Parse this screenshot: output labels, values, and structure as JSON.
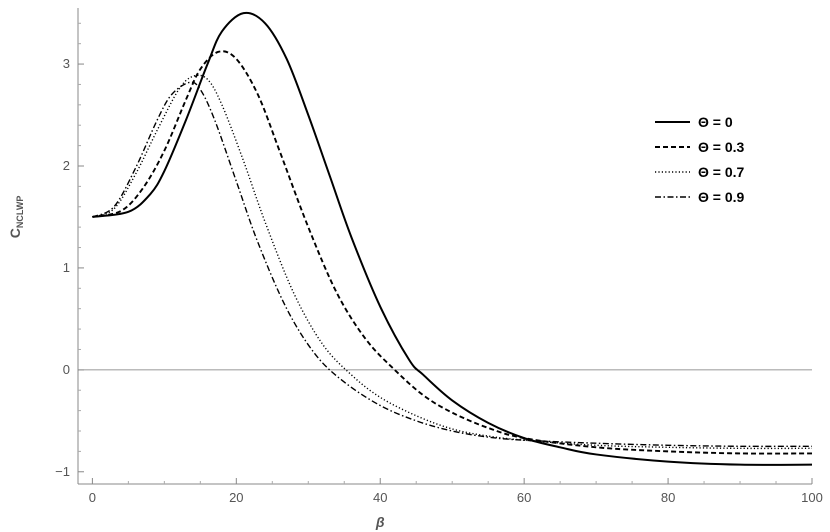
{
  "chart_data": {
    "type": "line",
    "title": "",
    "xlabel": "β",
    "ylabel": "C",
    "ylabel_sub": "NCLWP",
    "xlim": [
      -2,
      100
    ],
    "ylim": [
      -1.12,
      3.55
    ],
    "x_ticks": [
      0,
      20,
      40,
      60,
      80,
      100
    ],
    "x_tick_labels": [
      "0",
      "20",
      "40",
      "60",
      "80",
      "100"
    ],
    "y_ticks": [
      -1,
      0,
      1,
      2,
      3
    ],
    "y_tick_labels": [
      "−1",
      "0",
      "1",
      "2",
      "3"
    ],
    "grid": false,
    "legend_position": "top-right",
    "series": [
      {
        "name": "Θ = 0",
        "style": "solid",
        "x": [
          0,
          5,
          8,
          10,
          13,
          16,
          18,
          21,
          24,
          27,
          30,
          33,
          36,
          40,
          44,
          46,
          50,
          55,
          60,
          65,
          70,
          80,
          90,
          100
        ],
        "y": [
          1.5,
          1.55,
          1.72,
          1.95,
          2.45,
          3.0,
          3.32,
          3.5,
          3.4,
          3.05,
          2.5,
          1.9,
          1.3,
          0.62,
          0.1,
          -0.05,
          -0.3,
          -0.52,
          -0.67,
          -0.76,
          -0.83,
          -0.9,
          -0.93,
          -0.93
        ]
      },
      {
        "name": "Θ = 0.3",
        "style": "dashed",
        "x": [
          0,
          4,
          7,
          10,
          13,
          15,
          17.5,
          20,
          23,
          26,
          30,
          34,
          38,
          42,
          46,
          50,
          55,
          60,
          70,
          80,
          90,
          100
        ],
        "y": [
          1.5,
          1.56,
          1.78,
          2.15,
          2.65,
          2.95,
          3.12,
          3.05,
          2.7,
          2.15,
          1.4,
          0.75,
          0.3,
          0.0,
          -0.25,
          -0.42,
          -0.57,
          -0.67,
          -0.76,
          -0.8,
          -0.82,
          -0.82
        ]
      },
      {
        "name": "Θ = 0.7",
        "style": "dotted",
        "x": [
          0,
          3,
          6,
          9,
          12,
          14,
          16,
          18,
          21,
          24,
          28,
          32,
          36,
          40,
          45,
          50,
          55,
          60,
          70,
          80,
          90,
          100
        ],
        "y": [
          1.5,
          1.58,
          1.92,
          2.35,
          2.75,
          2.88,
          2.85,
          2.6,
          2.05,
          1.45,
          0.75,
          0.25,
          -0.05,
          -0.27,
          -0.45,
          -0.58,
          -0.65,
          -0.69,
          -0.74,
          -0.76,
          -0.77,
          -0.77
        ]
      },
      {
        "name": "Θ = 0.9",
        "style": "dash-dot",
        "x": [
          0,
          3,
          6,
          9,
          11,
          13.5,
          15,
          17,
          20,
          23,
          27,
          31,
          35,
          40,
          45,
          50,
          55,
          60,
          70,
          80,
          90,
          100
        ],
        "y": [
          1.5,
          1.6,
          1.98,
          2.45,
          2.7,
          2.82,
          2.75,
          2.45,
          1.85,
          1.25,
          0.6,
          0.15,
          -0.12,
          -0.35,
          -0.5,
          -0.6,
          -0.66,
          -0.69,
          -0.72,
          -0.74,
          -0.75,
          -0.75
        ]
      }
    ]
  }
}
